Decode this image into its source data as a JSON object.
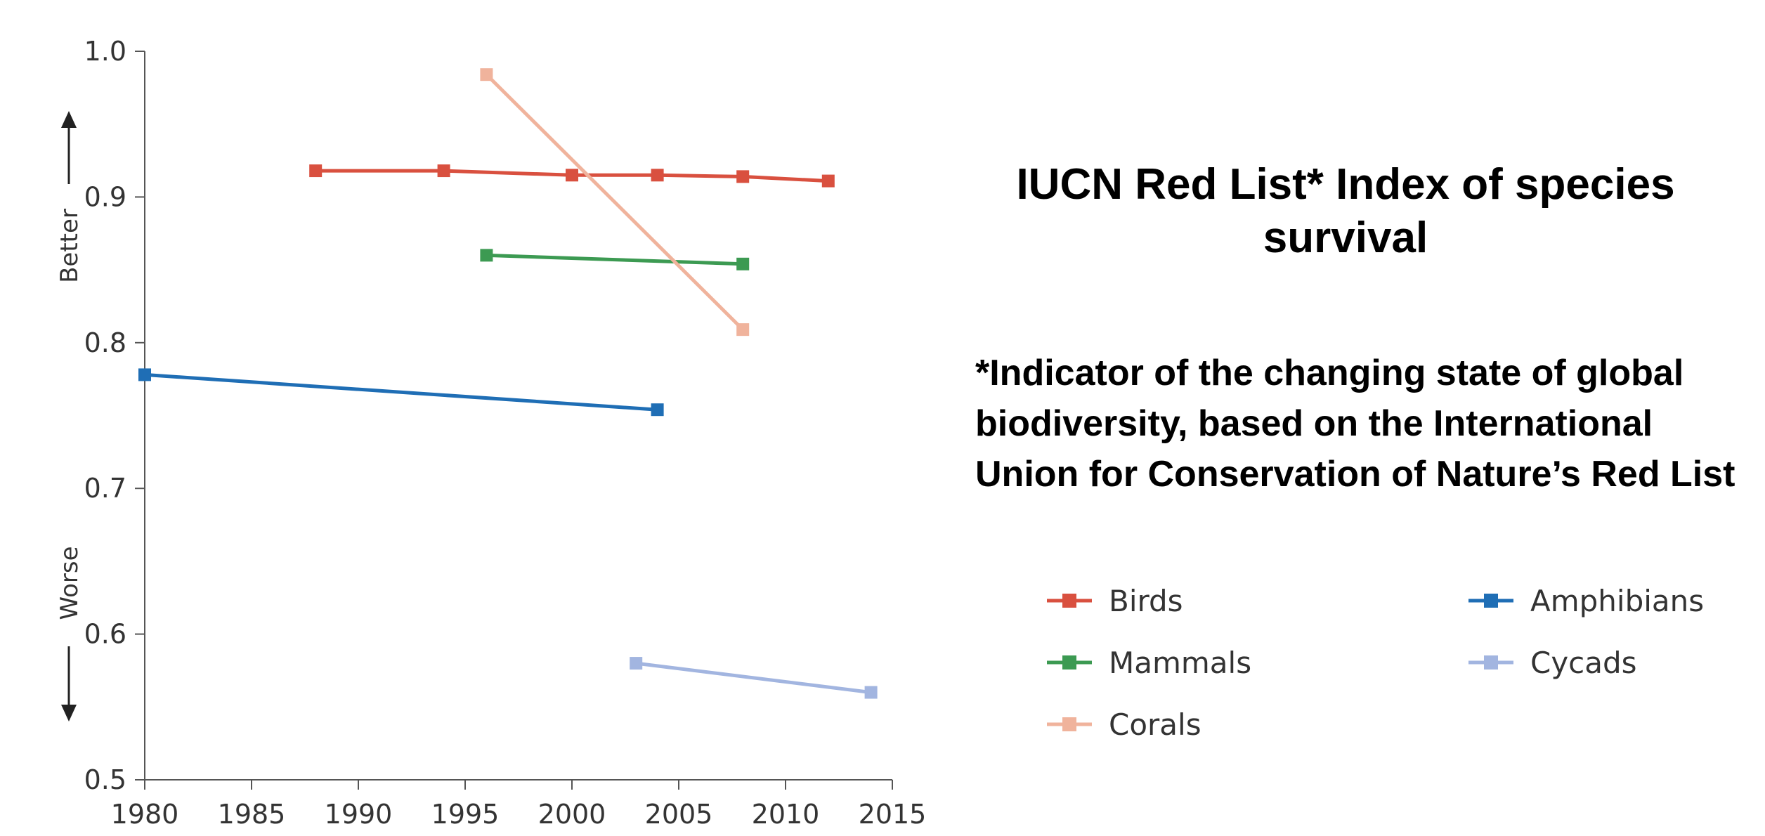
{
  "chart_data": {
    "type": "line",
    "title": "IUCN Red List* Index of species survival",
    "footnote": "*Indicator of the changing state of global biodiversity, based on the International Union for Conservation of Nature’s Red List",
    "xlabel": "",
    "ylabel": "",
    "y_direction_labels": {
      "up": "Better",
      "down": "Worse"
    },
    "xlim": [
      1980,
      2015
    ],
    "ylim": [
      0.5,
      1.0
    ],
    "x_ticks": [
      "1980",
      "1985",
      "1990",
      "1995",
      "2000",
      "2005",
      "2010",
      "2015"
    ],
    "y_ticks": [
      "0.5",
      "0.6",
      "0.7",
      "0.8",
      "0.9",
      "1.0"
    ],
    "grid": false,
    "legend_position": "right",
    "series": [
      {
        "name": "Birds",
        "color": "#d9503f",
        "points": [
          [
            1988,
            0.918
          ],
          [
            1994,
            0.918
          ],
          [
            2000,
            0.915
          ],
          [
            2004,
            0.915
          ],
          [
            2008,
            0.914
          ],
          [
            2012,
            0.911
          ]
        ]
      },
      {
        "name": "Mammals",
        "color": "#3c9a52",
        "points": [
          [
            1996,
            0.86
          ],
          [
            2008,
            0.854
          ]
        ]
      },
      {
        "name": "Corals",
        "color": "#f0b39c",
        "points": [
          [
            1996,
            0.984
          ],
          [
            2008,
            0.809
          ]
        ]
      },
      {
        "name": "Amphibians",
        "color": "#1f6eb5",
        "points": [
          [
            1980,
            0.778
          ],
          [
            2004,
            0.754
          ]
        ]
      },
      {
        "name": "Cycads",
        "color": "#a2b5e0",
        "points": [
          [
            2003,
            0.58
          ],
          [
            2014,
            0.56
          ]
        ]
      }
    ]
  }
}
